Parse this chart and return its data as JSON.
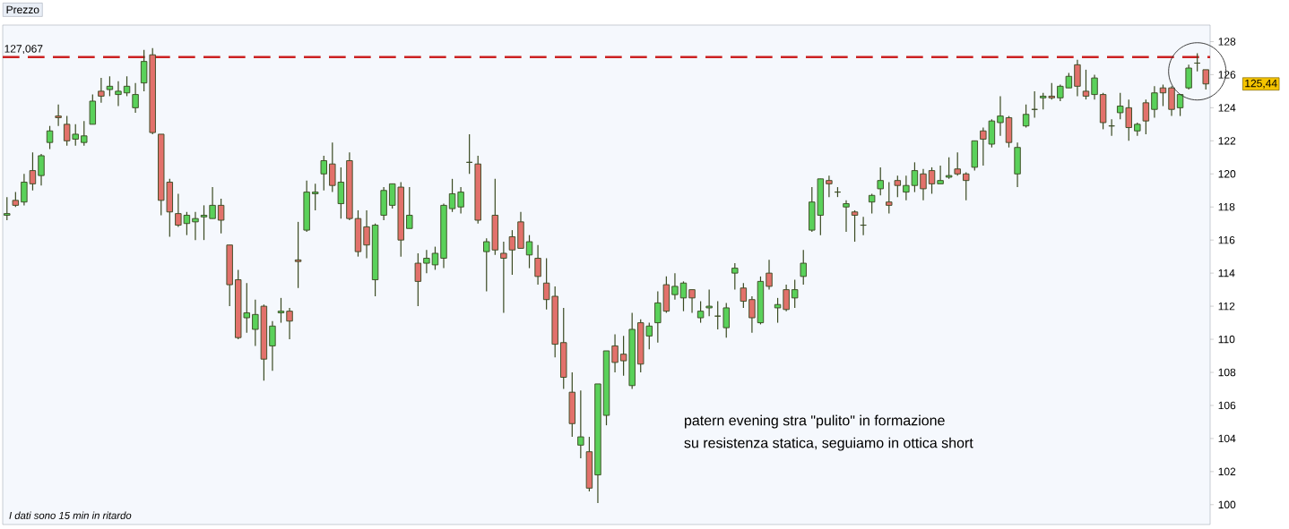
{
  "chart_data": {
    "type": "candlestick",
    "title": "Prezzo",
    "categories": [
      null,
      null,
      null,
      null,
      null,
      null,
      null,
      null,
      null,
      null,
      null,
      null,
      null,
      null,
      null,
      null,
      null,
      null,
      null,
      null,
      null,
      null,
      null,
      null,
      null,
      null,
      null,
      null,
      null,
      null,
      null,
      null,
      null,
      null,
      null,
      null,
      null,
      null,
      null,
      null,
      null,
      null,
      null,
      null,
      null,
      null,
      null,
      null,
      null,
      null,
      null,
      null,
      null,
      null,
      null,
      null,
      null,
      null,
      null,
      null,
      null,
      null,
      null,
      null,
      null,
      null,
      null,
      null,
      null,
      null,
      null,
      null,
      null,
      null,
      null,
      null,
      null,
      null,
      null,
      null,
      null,
      null,
      null,
      null,
      null,
      null,
      null,
      null,
      null,
      null,
      null,
      null,
      null,
      null,
      null,
      null,
      null,
      null,
      null,
      null,
      null,
      null,
      null,
      null,
      null,
      null,
      null,
      null,
      null,
      null,
      null,
      null,
      null,
      null,
      null,
      null,
      null,
      null,
      null,
      null,
      null,
      null,
      null,
      null,
      null,
      null,
      null,
      null,
      null,
      null,
      null,
      null,
      null,
      null,
      null,
      null,
      null,
      null,
      null,
      null,
      null
    ],
    "ohlc": [
      [
        117.5,
        118.6,
        117.2,
        117.6
      ],
      [
        118.4,
        118.9,
        118.0,
        118.1
      ],
      [
        118.3,
        120.0,
        118.1,
        119.5
      ],
      [
        120.2,
        121.3,
        119.0,
        119.4
      ],
      [
        119.9,
        121.2,
        119.3,
        121.1
      ],
      [
        121.9,
        122.9,
        121.5,
        122.6
      ],
      [
        123.5,
        124.2,
        122.9,
        123.4
      ],
      [
        123.0,
        123.5,
        121.7,
        122.0
      ],
      [
        122.1,
        123.0,
        121.7,
        122.4
      ],
      [
        121.9,
        123.2,
        121.7,
        122.3
      ],
      [
        123.0,
        124.8,
        123.0,
        124.4
      ],
      [
        125.0,
        125.8,
        124.3,
        124.7
      ],
      [
        125.1,
        125.9,
        124.7,
        125.3
      ],
      [
        124.8,
        125.6,
        124.1,
        125.0
      ],
      [
        124.9,
        125.9,
        124.7,
        125.3
      ],
      [
        124.0,
        125.5,
        123.7,
        124.8
      ],
      [
        125.5,
        127.5,
        125.0,
        126.8
      ],
      [
        127.2,
        127.6,
        122.4,
        122.5
      ],
      [
        122.4,
        122.4,
        117.5,
        118.4
      ],
      [
        119.5,
        119.7,
        116.2,
        117.7
      ],
      [
        117.6,
        118.8,
        116.8,
        116.9
      ],
      [
        117.0,
        117.7,
        116.3,
        117.5
      ],
      [
        117.1,
        117.7,
        116.0,
        117.3
      ],
      [
        117.4,
        118.1,
        116.0,
        117.5
      ],
      [
        117.3,
        119.2,
        117.3,
        118.1
      ],
      [
        118.1,
        118.5,
        116.4,
        117.2
      ],
      [
        115.7,
        115.7,
        112.0,
        113.3
      ],
      [
        113.6,
        114.2,
        110.0,
        110.1
      ],
      [
        111.3,
        113.4,
        110.4,
        111.6
      ],
      [
        110.6,
        112.4,
        109.6,
        111.5
      ],
      [
        112.0,
        112.1,
        107.5,
        108.8
      ],
      [
        109.6,
        111.1,
        108.1,
        110.8
      ],
      [
        111.6,
        112.5,
        111.0,
        111.7
      ],
      [
        111.7,
        111.9,
        110.0,
        111.1
      ],
      [
        114.8,
        117.1,
        113.1,
        114.7
      ],
      [
        116.6,
        119.6,
        116.5,
        118.9
      ],
      [
        118.8,
        119.4,
        117.8,
        118.9
      ],
      [
        120.0,
        121.1,
        119.0,
        120.8
      ],
      [
        120.6,
        121.9,
        118.9,
        119.3
      ],
      [
        118.2,
        120.4,
        117.3,
        119.5
      ],
      [
        120.8,
        121.3,
        117.2,
        117.3
      ],
      [
        117.3,
        117.8,
        115.0,
        115.3
      ],
      [
        116.8,
        117.8,
        114.9,
        115.7
      ],
      [
        113.6,
        117.0,
        112.6,
        116.9
      ],
      [
        117.5,
        119.2,
        117.2,
        119.0
      ],
      [
        118.1,
        119.4,
        117.9,
        119.4
      ],
      [
        119.2,
        119.5,
        115.0,
        116.0
      ],
      [
        116.7,
        119.2,
        116.7,
        117.5
      ],
      [
        114.6,
        115.2,
        112.0,
        113.5
      ],
      [
        114.6,
        115.4,
        114.0,
        114.9
      ],
      [
        114.5,
        115.6,
        114.2,
        115.2
      ],
      [
        114.9,
        118.2,
        114.3,
        118.1
      ],
      [
        117.9,
        119.7,
        117.7,
        118.8
      ],
      [
        118.0,
        119.2,
        117.6,
        118.9
      ],
      [
        120.7,
        122.4,
        120.0,
        120.7
      ],
      [
        120.6,
        121.1,
        117.0,
        117.2
      ],
      [
        115.3,
        116.1,
        112.9,
        115.9
      ],
      [
        117.5,
        119.7,
        115.1,
        115.4
      ],
      [
        115.2,
        115.9,
        111.6,
        114.9
      ],
      [
        116.2,
        116.6,
        113.9,
        115.4
      ],
      [
        117.1,
        117.7,
        115.5,
        115.5
      ],
      [
        115.1,
        116.3,
        114.3,
        115.9
      ],
      [
        114.9,
        115.7,
        113.3,
        113.8
      ],
      [
        113.4,
        114.9,
        111.8,
        112.4
      ],
      [
        112.6,
        113.2,
        108.9,
        109.7
      ],
      [
        109.8,
        111.9,
        107.0,
        107.7
      ],
      [
        106.8,
        108.0,
        104.1,
        104.9
      ],
      [
        103.6,
        106.9,
        102.8,
        104.1
      ],
      [
        103.2,
        104.1,
        100.8,
        101.0
      ],
      [
        101.8,
        107.3,
        100.1,
        107.3
      ],
      [
        105.4,
        109.3,
        104.8,
        109.3
      ],
      [
        109.6,
        110.3,
        108.0,
        108.6
      ],
      [
        109.1,
        110.2,
        107.8,
        108.7
      ],
      [
        107.2,
        111.6,
        107.0,
        110.6
      ],
      [
        111.0,
        111.2,
        108.0,
        108.5
      ],
      [
        110.2,
        111.0,
        109.4,
        110.8
      ],
      [
        111.0,
        112.9,
        109.8,
        112.2
      ],
      [
        113.3,
        113.8,
        111.6,
        111.7
      ],
      [
        112.7,
        114.0,
        112.4,
        113.2
      ],
      [
        112.5,
        113.5,
        111.7,
        113.4
      ],
      [
        113.0,
        113.0,
        111.6,
        112.5
      ],
      [
        111.3,
        112.3,
        111.0,
        111.7
      ],
      [
        111.9,
        113.0,
        111.4,
        112.0
      ],
      [
        111.4,
        112.3,
        110.6,
        111.4
      ],
      [
        110.7,
        112.2,
        110.1,
        111.9
      ],
      [
        114.0,
        114.6,
        113.0,
        114.3
      ],
      [
        113.1,
        113.4,
        111.9,
        112.3
      ],
      [
        112.4,
        112.6,
        110.4,
        111.3
      ],
      [
        111.0,
        113.8,
        110.9,
        113.5
      ],
      [
        114.0,
        114.8,
        113.0,
        113.2
      ],
      [
        111.9,
        112.5,
        111.0,
        112.1
      ],
      [
        113.0,
        113.3,
        111.7,
        111.8
      ],
      [
        112.5,
        113.6,
        111.9,
        113.0
      ],
      [
        113.8,
        115.4,
        113.3,
        114.6
      ],
      [
        116.6,
        119.2,
        116.5,
        118.3
      ],
      [
        117.5,
        119.7,
        116.3,
        119.7
      ],
      [
        119.6,
        119.9,
        118.6,
        119.4
      ],
      [
        118.9,
        119.2,
        118.6,
        118.9
      ],
      [
        118.0,
        118.4,
        116.5,
        118.2
      ],
      [
        117.7,
        117.8,
        115.9,
        117.5
      ],
      [
        116.9,
        117.4,
        116.3,
        116.9
      ],
      [
        118.3,
        118.8,
        117.6,
        118.7
      ],
      [
        119.1,
        120.4,
        118.7,
        119.6
      ],
      [
        118.3,
        119.5,
        117.6,
        118.1
      ],
      [
        119.6,
        119.9,
        118.6,
        119.3
      ],
      [
        118.9,
        119.9,
        118.4,
        119.3
      ],
      [
        119.3,
        120.7,
        118.9,
        120.2
      ],
      [
        120.0,
        120.3,
        118.4,
        119.1
      ],
      [
        120.2,
        120.4,
        118.8,
        119.4
      ],
      [
        119.4,
        120.5,
        119.4,
        119.6
      ],
      [
        119.8,
        121.0,
        119.7,
        119.9
      ],
      [
        120.3,
        121.3,
        119.9,
        120.0
      ],
      [
        120.0,
        120.1,
        118.4,
        119.6
      ],
      [
        120.4,
        122.0,
        120.2,
        122.0
      ],
      [
        122.6,
        122.8,
        120.5,
        122.1
      ],
      [
        121.8,
        123.3,
        121.6,
        123.2
      ],
      [
        123.1,
        124.7,
        122.3,
        123.5
      ],
      [
        123.4,
        123.5,
        121.6,
        121.9
      ],
      [
        120.0,
        121.9,
        119.2,
        121.6
      ],
      [
        122.9,
        124.2,
        122.8,
        123.6
      ],
      [
        123.9,
        125.0,
        123.4,
        123.9
      ],
      [
        124.6,
        124.9,
        123.9,
        124.7
      ],
      [
        124.7,
        125.5,
        124.5,
        124.6
      ],
      [
        124.6,
        125.4,
        124.4,
        125.3
      ],
      [
        125.2,
        126.1,
        125.2,
        125.9
      ],
      [
        126.6,
        126.9,
        124.7,
        125.3
      ],
      [
        125.0,
        126.3,
        124.5,
        124.7
      ],
      [
        124.8,
        126.0,
        124.5,
        125.8
      ],
      [
        124.8,
        124.9,
        122.7,
        123.1
      ],
      [
        122.9,
        123.3,
        122.3,
        122.9
      ],
      [
        123.7,
        124.9,
        123.3,
        124.1
      ],
      [
        124.0,
        124.5,
        122.0,
        122.8
      ],
      [
        122.6,
        123.1,
        122.3,
        123.0
      ],
      [
        124.3,
        124.5,
        122.4,
        123.2
      ],
      [
        123.9,
        125.3,
        123.4,
        124.9
      ],
      [
        125.2,
        125.4,
        124.1,
        124.9
      ],
      [
        125.2,
        125.3,
        123.5,
        123.9
      ],
      [
        124.0,
        124.8,
        123.5,
        124.8
      ],
      [
        125.2,
        126.6,
        125.1,
        126.4
      ],
      [
        126.7,
        127.3,
        126.2,
        126.7
      ],
      [
        126.3,
        126.3,
        125.1,
        125.44
      ]
    ],
    "colors": [
      "#5ad15a",
      "#e2716b",
      "#5ad15a",
      "#e2716b",
      "#5ad15a",
      "#5ad15a",
      "#e2716b",
      "#e2716b",
      "#5ad15a",
      "#5ad15a",
      "#5ad15a",
      "#e2716b",
      "#5ad15a",
      "#5ad15a",
      "#5ad15a",
      "#5ad15a",
      "#5ad15a",
      "#e2716b",
      "#e2716b",
      "#e2716b",
      "#e2716b",
      "#5ad15a",
      "#5ad15a",
      "#5ad15a",
      "#5ad15a",
      "#e2716b",
      "#e2716b",
      "#e2716b",
      "#5ad15a",
      "#5ad15a",
      "#e2716b",
      "#5ad15a",
      "#5ad15a",
      "#e2716b",
      "#e2716b",
      "#5ad15a",
      "#5ad15a",
      "#5ad15a",
      "#e2716b",
      "#5ad15a",
      "#e2716b",
      "#e2716b",
      "#e2716b",
      "#5ad15a",
      "#5ad15a",
      "#5ad15a",
      "#e2716b",
      "#5ad15a",
      "#e2716b",
      "#5ad15a",
      "#5ad15a",
      "#5ad15a",
      "#5ad15a",
      "#5ad15a",
      "#3a4a22",
      "#e2716b",
      "#5ad15a",
      "#e2716b",
      "#e2716b",
      "#e2716b",
      "#e2716b",
      "#5ad15a",
      "#e2716b",
      "#e2716b",
      "#e2716b",
      "#e2716b",
      "#e2716b",
      "#5ad15a",
      "#e2716b",
      "#5ad15a",
      "#5ad15a",
      "#e2716b",
      "#e2716b",
      "#5ad15a",
      "#e2716b",
      "#5ad15a",
      "#5ad15a",
      "#e2716b",
      "#5ad15a",
      "#5ad15a",
      "#e2716b",
      "#5ad15a",
      "#5ad15a",
      "#3a4a22",
      "#5ad15a",
      "#5ad15a",
      "#e2716b",
      "#e2716b",
      "#5ad15a",
      "#e2716b",
      "#5ad15a",
      "#e2716b",
      "#5ad15a",
      "#5ad15a",
      "#5ad15a",
      "#5ad15a",
      "#e2716b",
      "#3a4a22",
      "#5ad15a",
      "#e2716b",
      "#3a4a22",
      "#5ad15a",
      "#5ad15a",
      "#e2716b",
      "#e2716b",
      "#5ad15a",
      "#5ad15a",
      "#e2716b",
      "#e2716b",
      "#5ad15a",
      "#5ad15a",
      "#e2716b",
      "#e2716b",
      "#5ad15a",
      "#e2716b",
      "#5ad15a",
      "#5ad15a",
      "#e2716b",
      "#5ad15a",
      "#5ad15a",
      "#3a4a22",
      "#5ad15a",
      "#e2716b",
      "#5ad15a",
      "#5ad15a",
      "#e2716b",
      "#e2716b",
      "#5ad15a",
      "#e2716b",
      "#3a4a22",
      "#5ad15a",
      "#e2716b",
      "#5ad15a",
      "#e2716b",
      "#5ad15a",
      "#e2716b",
      "#e2716b",
      "#5ad15a",
      "#5ad15a",
      "#3a4a22",
      "#e2716b"
    ],
    "ylim": [
      98.8,
      129
    ],
    "yticks": [
      100,
      102,
      104,
      106,
      108,
      110,
      112,
      114,
      116,
      118,
      120,
      122,
      124,
      126,
      128
    ],
    "tick_labels": "y",
    "ref_lines": [
      {
        "axis": "y",
        "value": 127.067,
        "label": "127,067",
        "color": "#cc2222",
        "line_style": "dashed"
      }
    ],
    "annotations": [
      "patern evening stra \"pulito\" in formazione",
      "su resistenza statica, seguiamo in ottica short",
      "I dati sono 15 min in ritardo",
      "125,44"
    ]
  }
}
